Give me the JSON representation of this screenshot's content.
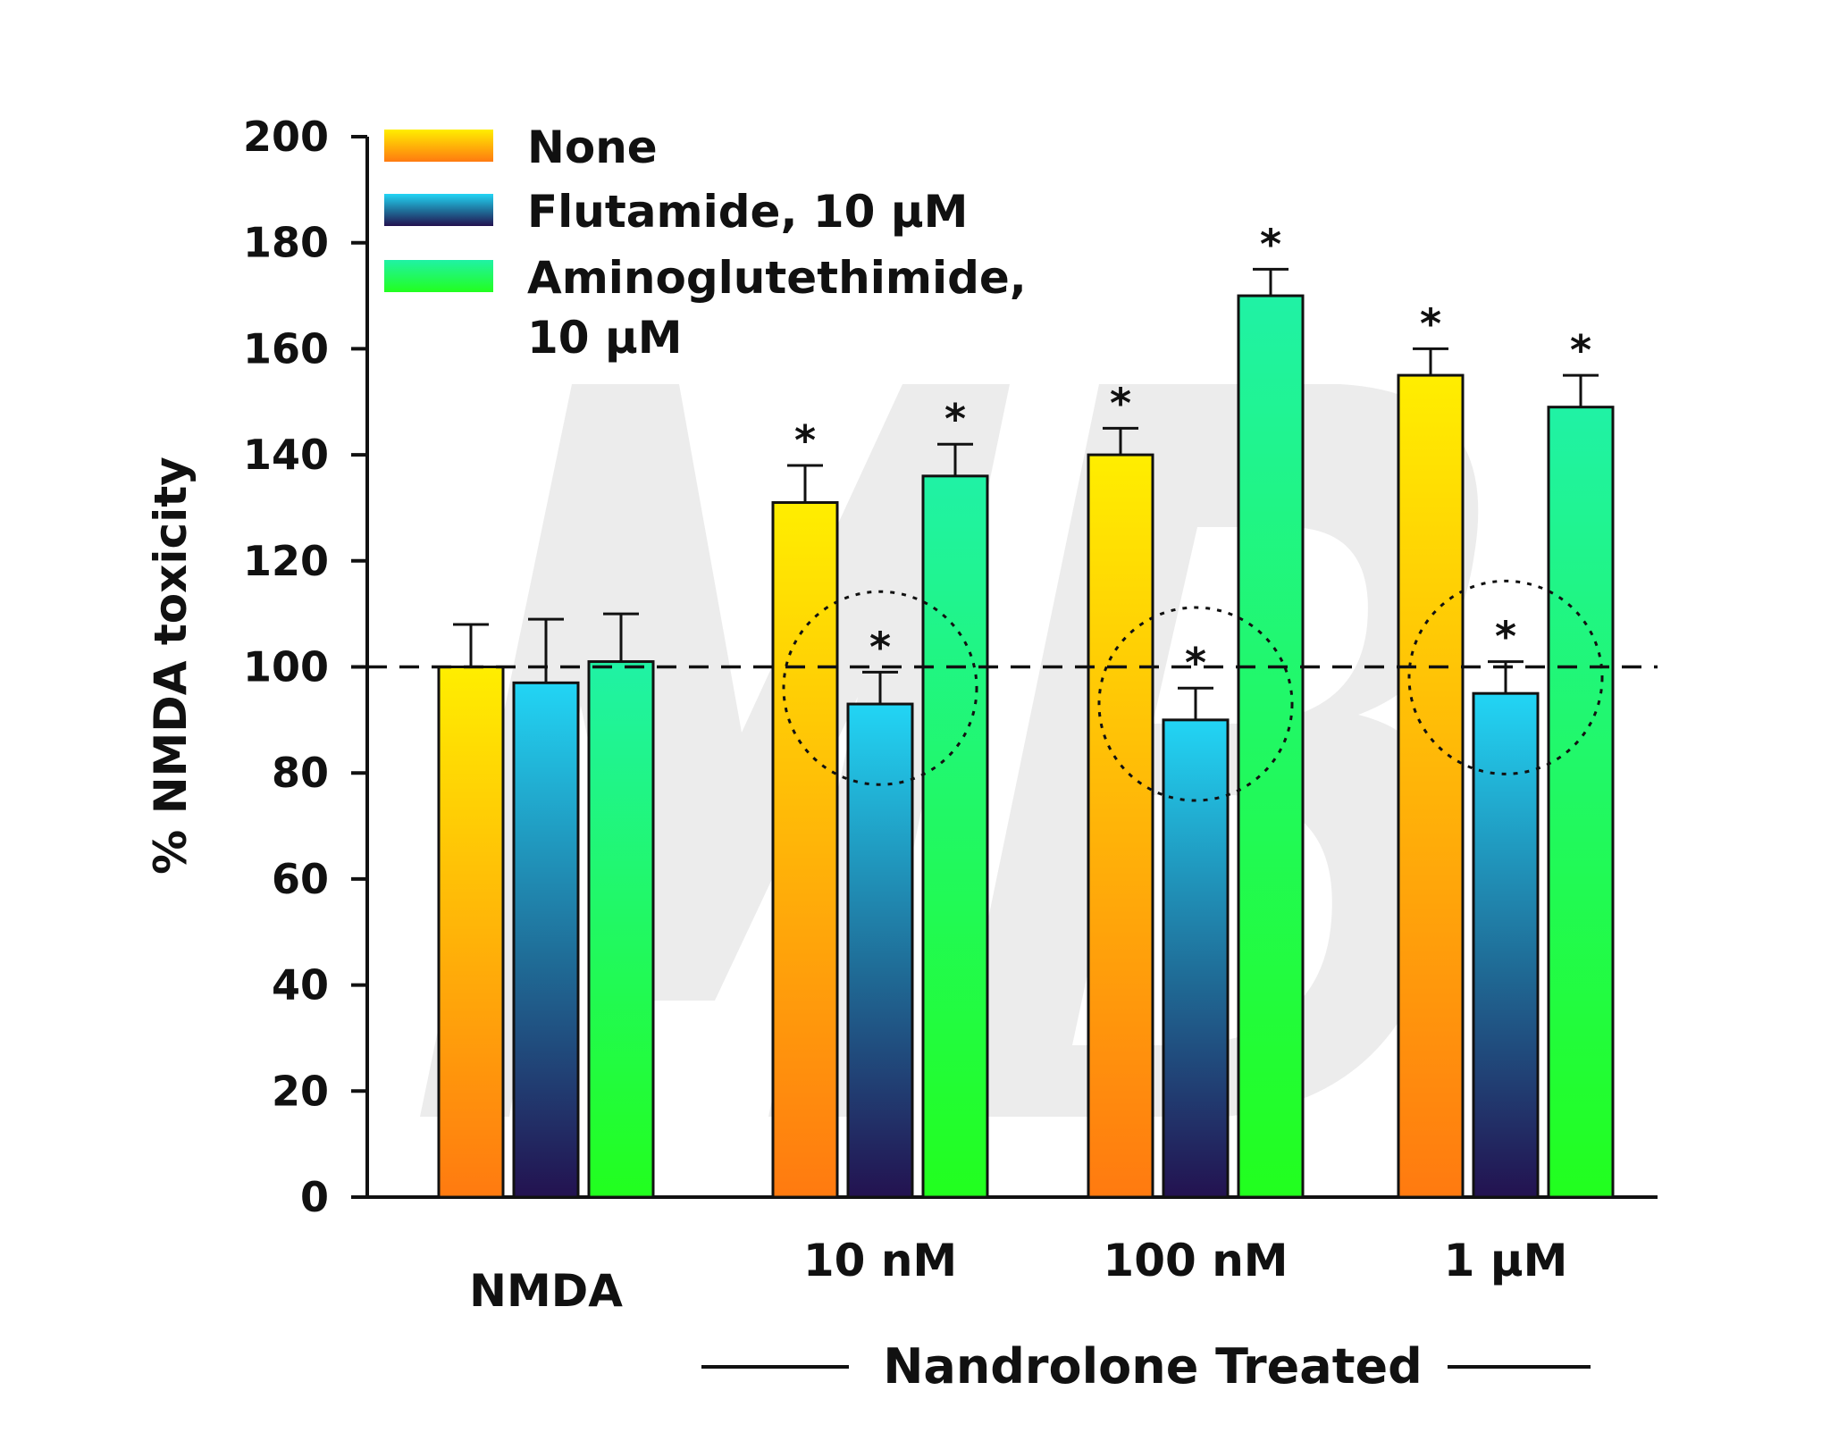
{
  "chart_data": {
    "type": "bar",
    "ylabel": "% NMDA toxicity",
    "ylim": [
      0,
      200
    ],
    "yticks": [
      0,
      20,
      40,
      60,
      80,
      100,
      120,
      140,
      160,
      180,
      200
    ],
    "reference_line": 100,
    "categories": [
      "NMDA",
      "10 nM",
      "100 nM",
      "1 µM"
    ],
    "group_label": "Nandrolone Treated",
    "grid": false,
    "legend_position": "top-left",
    "series": [
      {
        "name": "None",
        "values": [
          100,
          131,
          140,
          155
        ],
        "errors": [
          8,
          7,
          5,
          5
        ],
        "significant": [
          false,
          true,
          true,
          true
        ],
        "gradient": [
          "#ffee00",
          "#ff7a10"
        ]
      },
      {
        "name": "Flutamide, 10 µM",
        "values": [
          97,
          93,
          90,
          95
        ],
        "errors": [
          12,
          6,
          6,
          6
        ],
        "significant": [
          false,
          true,
          true,
          true
        ],
        "gradient": [
          "#22d5f5",
          "#1f6a95",
          "#231250"
        ]
      },
      {
        "name": "Aminoglutethimide, 10 µM",
        "legend_lines": [
          "Aminoglutethimide,",
          "10 µM"
        ],
        "values": [
          101,
          136,
          170,
          149
        ],
        "errors": [
          9,
          6,
          5,
          6
        ],
        "significant": [
          false,
          true,
          true,
          true
        ],
        "gradient": [
          "#20f2a5",
          "#22ff1e"
        ]
      }
    ],
    "highlighted_bars": [
      {
        "category": "10 nM",
        "series": "Flutamide, 10 µM"
      },
      {
        "category": "100 nM",
        "series": "Flutamide, 10 µM"
      },
      {
        "category": "1 µM",
        "series": "Flutamide, 10 µM"
      }
    ],
    "significance_marker": "*"
  }
}
